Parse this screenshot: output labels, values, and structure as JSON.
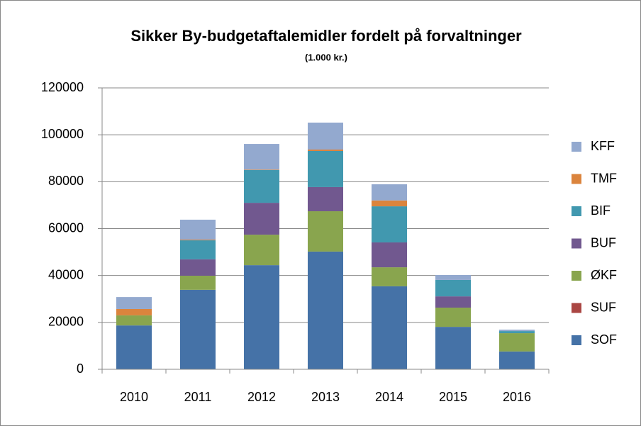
{
  "chart_data": {
    "type": "stacked_bar",
    "title": "Sikker By-budgetaftalemidler fordelt på forvaltninger",
    "subtitle": "(1.000 kr.)",
    "categories": [
      "2010",
      "2011",
      "2012",
      "2013",
      "2014",
      "2015",
      "2016"
    ],
    "series": [
      {
        "name": "SOF",
        "color": "#4572a7",
        "values": [
          18700,
          33900,
          44400,
          50200,
          35400,
          18100,
          7600
        ]
      },
      {
        "name": "SUF",
        "color": "#aa4643",
        "values": [
          0,
          0,
          0,
          0,
          0,
          0,
          0
        ]
      },
      {
        "name": "ØKF",
        "color": "#89a54e",
        "values": [
          4300,
          6000,
          13000,
          17200,
          8100,
          8200,
          7800
        ]
      },
      {
        "name": "BUF",
        "color": "#71588f",
        "values": [
          0,
          7000,
          13600,
          10300,
          10600,
          4800,
          0
        ]
      },
      {
        "name": "BIF",
        "color": "#4198af",
        "values": [
          0,
          8100,
          14000,
          15400,
          15400,
          7000,
          900
        ]
      },
      {
        "name": "TMF",
        "color": "#db843d",
        "values": [
          2700,
          300,
          200,
          600,
          2500,
          0,
          0
        ]
      },
      {
        "name": "KFF",
        "color": "#93a9cf",
        "values": [
          5100,
          8500,
          10900,
          11500,
          6900,
          2100,
          600
        ]
      }
    ],
    "ylim": [
      0,
      120000
    ],
    "yticks": [
      0,
      20000,
      40000,
      60000,
      80000,
      100000,
      120000
    ],
    "grid": true,
    "legend": "right"
  }
}
